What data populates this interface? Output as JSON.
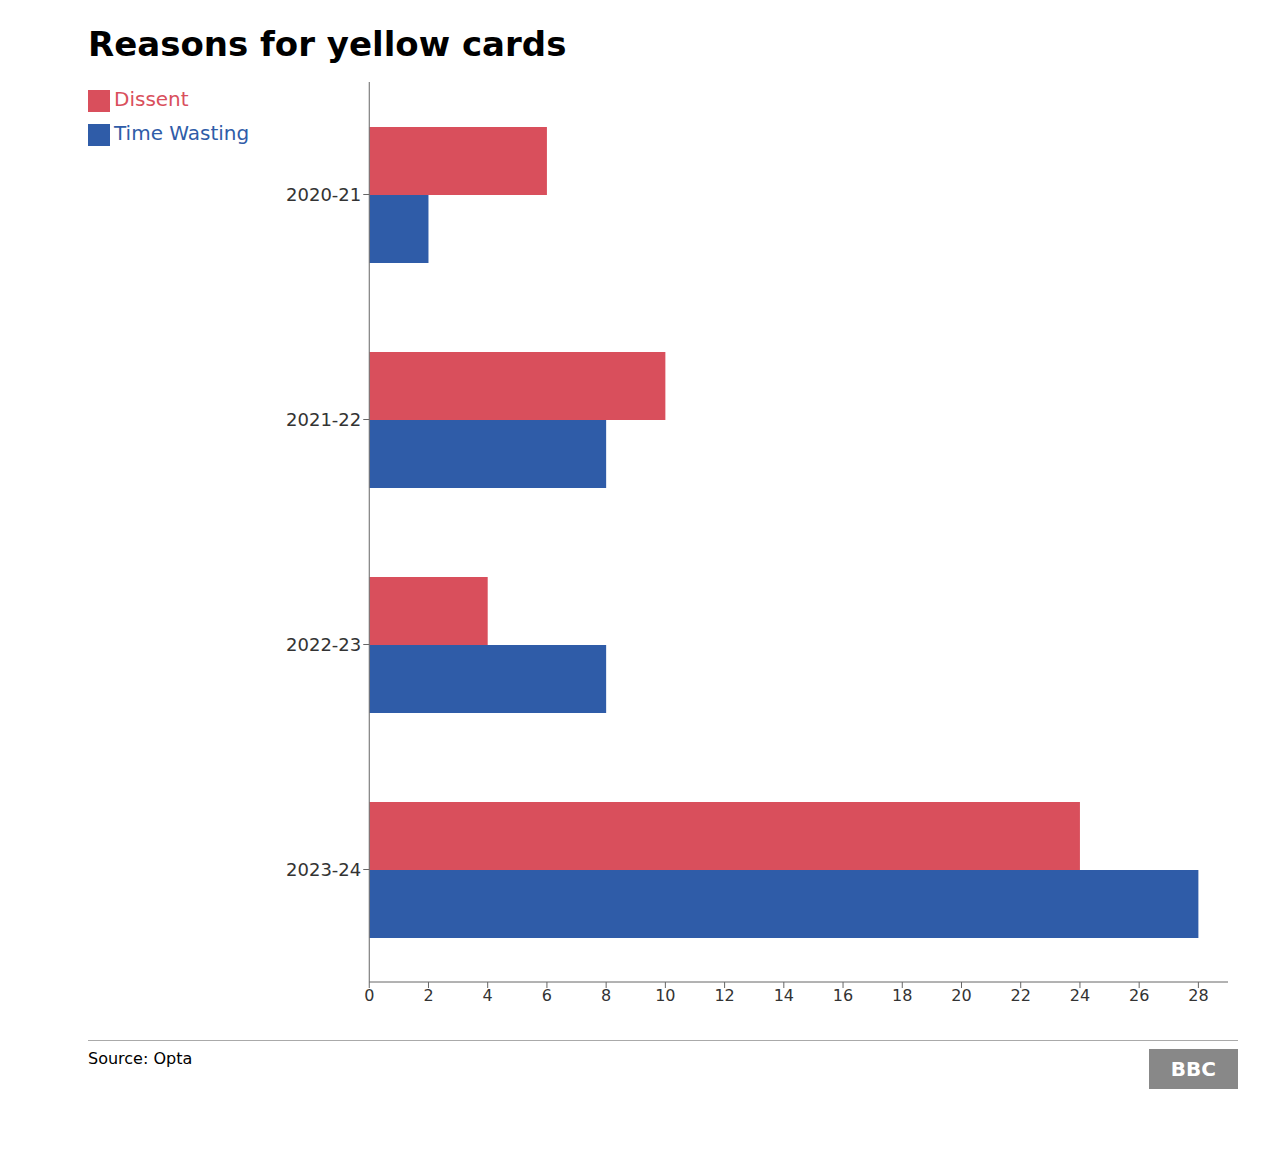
{
  "chart_data": {
    "type": "bar",
    "orientation": "horizontal",
    "title": "Reasons for yellow cards",
    "categories": [
      "2020-21",
      "2021-22",
      "2022-23",
      "2023-24"
    ],
    "series": [
      {
        "name": "Dissent",
        "color": "#d94f5c",
        "values": [
          6,
          10,
          4,
          24
        ]
      },
      {
        "name": "Time Wasting",
        "color": "#2f5ca8",
        "values": [
          2,
          8,
          8,
          28
        ]
      }
    ],
    "xlim": [
      0,
      29
    ],
    "xticks": [
      0,
      2,
      4,
      6,
      8,
      10,
      12,
      14,
      16,
      18,
      20,
      22,
      24,
      26,
      28
    ],
    "grid": false,
    "legend": "top",
    "annotations": [
      "Source: Opta",
      "BBC"
    ]
  }
}
